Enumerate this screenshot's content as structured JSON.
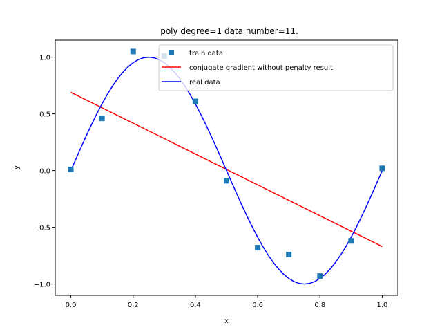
{
  "chart_data": {
    "type": "line",
    "title": "poly degree=1 data number=11.",
    "xlabel": "x",
    "ylabel": "y",
    "xlim": [
      -0.05,
      1.05
    ],
    "ylim": [
      -1.1,
      1.15
    ],
    "xticks": [
      0.0,
      0.2,
      0.4,
      0.6,
      0.8,
      1.0
    ],
    "xtick_labels": [
      "0.0",
      "0.2",
      "0.4",
      "0.6",
      "0.8",
      "1.0"
    ],
    "yticks": [
      -1.0,
      -0.5,
      0.0,
      0.5,
      1.0
    ],
    "ytick_labels": [
      "−1.0",
      "−0.5",
      "0.0",
      "0.5",
      "1.0"
    ],
    "grid": false,
    "legend_position": "top-right",
    "series": [
      {
        "name": "train data",
        "kind": "scatter",
        "marker": "square",
        "color": "#1f77b4",
        "x": [
          0.0,
          0.1,
          0.2,
          0.3,
          0.4,
          0.5,
          0.6,
          0.7,
          0.8,
          0.9,
          1.0
        ],
        "y": [
          0.01,
          0.46,
          1.05,
          1.01,
          0.61,
          -0.09,
          -0.68,
          -0.74,
          -0.93,
          -0.62,
          0.02
        ]
      },
      {
        "name": "conjugate gradient without penalty result",
        "kind": "line",
        "color": "#ff0000",
        "x": [
          0.0,
          1.0
        ],
        "y": [
          0.69,
          -0.67
        ]
      },
      {
        "name": "real data",
        "kind": "line",
        "color": "#0000ff",
        "function": "sin(2*pi*x)",
        "x_range": [
          0.0,
          1.0
        ]
      }
    ]
  }
}
